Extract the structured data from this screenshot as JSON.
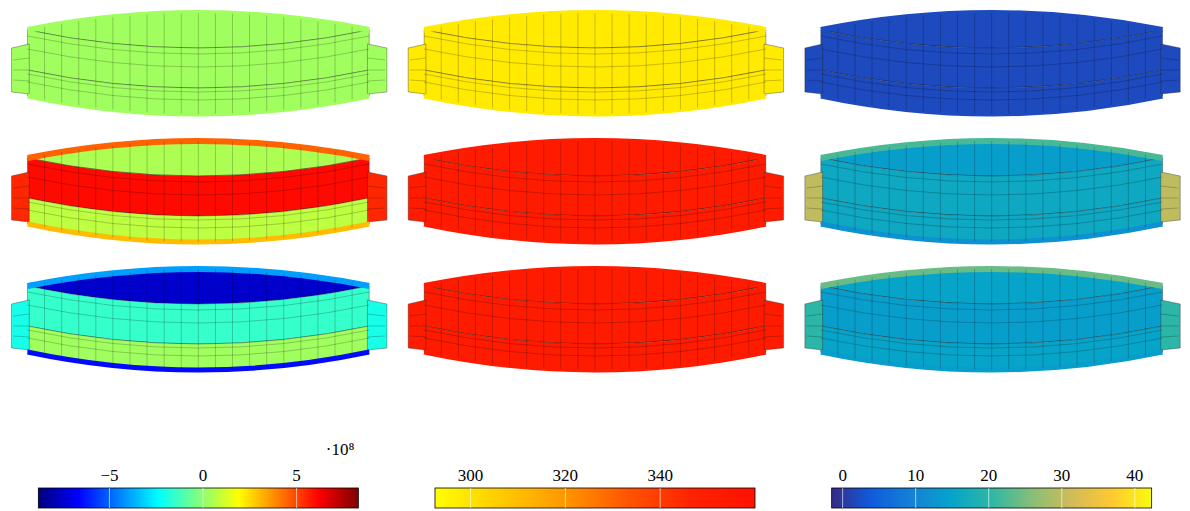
{
  "chart_data": [
    {
      "type": "field",
      "scale_label": "·10⁸",
      "colorbar": {
        "range": [
          -8.8,
          8.3
        ],
        "ticks": [
          {
            "value": -5,
            "label": "−5"
          },
          0,
          5
        ],
        "colors": [
          "#00007f",
          "#0000ff",
          "#007fff",
          "#00ffff",
          "#7fff7f",
          "#ffff00",
          "#ff7f00",
          "#ff0000",
          "#7f0000"
        ]
      },
      "panels": [
        {
          "upper": 0.3,
          "band": 0.3,
          "lower": 0.3,
          "rim": 0.3,
          "bottom_rim": 0.3,
          "flanges": 0.3
        },
        {
          "upper": 0.5,
          "band": 6.0,
          "lower": 0.8,
          "rim": 4.5,
          "bottom_rim": 3.0,
          "flanges": 5.5
        },
        {
          "upper": -7.5,
          "band": -1.5,
          "lower": 0.3,
          "rim": -4.0,
          "bottom_rim": -6.5,
          "flanges": -2.0
        }
      ]
    },
    {
      "type": "field",
      "colorbar": {
        "range": [
          292.5,
          360
        ],
        "ticks": [
          300,
          320,
          340
        ],
        "colors": [
          "#ffff00",
          "#ffcc00",
          "#ff9900",
          "#ff5500",
          "#ff2200",
          "#ff1100"
        ]
      },
      "panels": [
        {
          "upper": 298,
          "band": 298,
          "lower": 298,
          "rim": 298,
          "bottom_rim": 298,
          "flanges": 298
        },
        {
          "upper": 352,
          "band": 352,
          "lower": 352,
          "rim": 352,
          "bottom_rim": 352,
          "flanges": 352
        },
        {
          "upper": 352,
          "band": 352,
          "lower": 352,
          "rim": 352,
          "bottom_rim": 352,
          "flanges": 352
        }
      ]
    },
    {
      "type": "field",
      "colorbar": {
        "range": [
          -1.5,
          42.3
        ],
        "ticks": [
          0,
          10,
          20,
          30,
          40
        ],
        "colors": [
          "#352a87",
          "#0f5cdd",
          "#1481d6",
          "#06a4ca",
          "#2eb7a4",
          "#87bf77",
          "#d1bb59",
          "#fec832",
          "#f9fb0e"
        ]
      },
      "panels": [
        {
          "upper": 2,
          "band": 2,
          "lower": 2,
          "rim": 2,
          "bottom_rim": 2,
          "flanges": 2
        },
        {
          "upper": 14,
          "band": 16,
          "lower": 16,
          "rim": 22,
          "bottom_rim": 12,
          "flanges": 30
        },
        {
          "upper": 15,
          "band": 14,
          "lower": 15,
          "rim": 24,
          "bottom_rim": 14,
          "flanges": 20
        }
      ]
    }
  ]
}
